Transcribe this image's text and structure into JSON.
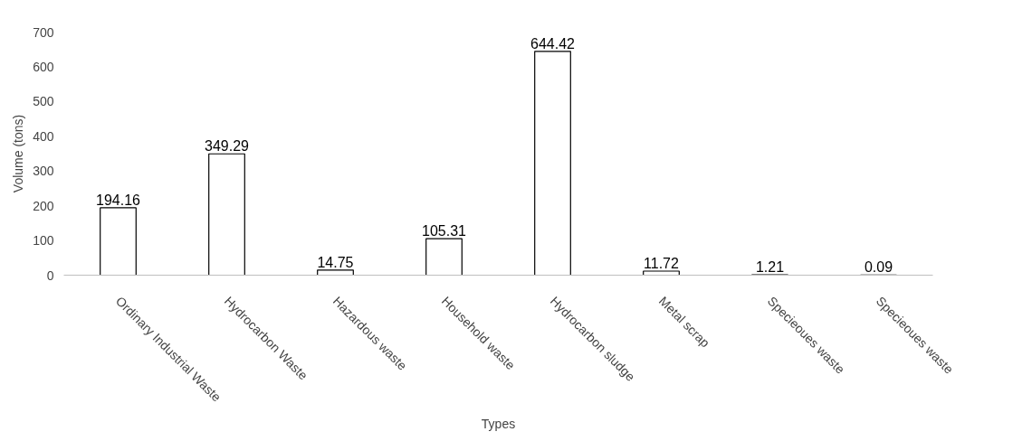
{
  "chart_data": {
    "type": "bar",
    "xlabel": "Types",
    "ylabel": "Volume (tons)",
    "categories": [
      "Ordinary Industrial Waste",
      "Hydrocarbon Waste",
      "Hazardous waste",
      "Household waste",
      "Hydrocarbon sludge",
      "Metal scrap",
      "Specieoues waste",
      "Specieoues waste"
    ],
    "values": [
      194.16,
      349.29,
      14.75,
      105.31,
      644.42,
      11.72,
      1.21,
      0.09
    ],
    "color": "#ffffff",
    "ylim": [
      0,
      700
    ],
    "yticks": [
      0,
      100,
      200,
      300,
      400,
      500,
      600,
      700
    ],
    "data_labels": true,
    "grid": false
  }
}
